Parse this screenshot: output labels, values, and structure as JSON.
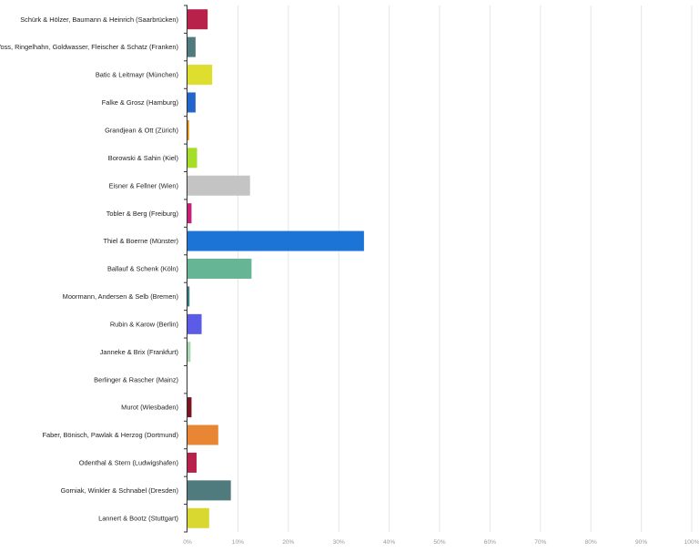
{
  "chart_data": {
    "type": "bar",
    "orientation": "horizontal",
    "title": "",
    "xlabel": "",
    "ylabel": "",
    "xlim": [
      0,
      100
    ],
    "x_ticks": [
      "0%",
      "10%",
      "20%",
      "30%",
      "40%",
      "50%",
      "60%",
      "70%",
      "80%",
      "90%",
      "100%"
    ],
    "grid": true,
    "categories": [
      "Schürk & Hölzer, Baumann & Heinrich (Saarbrücken)",
      "Voss, Ringelhahn, Goldwasser, Fleischer & Schatz (Franken)",
      "Batic & Leitmayr (München)",
      "Falke & Grosz (Hamburg)",
      "Grandjean & Ott (Zürich)",
      "Borowski & Sahin (Kiel)",
      "Eisner & Fellner (Wien)",
      "Tobler & Berg (Freiburg)",
      "Thiel & Boerne (Münster)",
      "Ballauf & Schenk (Köln)",
      "Moormann, Andersen & Selb (Bremen)",
      "Rubin & Karow (Berlin)",
      "Janneke & Brix (Frankfurt)",
      "Berlinger & Rascher (Mainz)",
      "Murot (Wiesbaden)",
      "Faber, Bönisch, Pawlak & Herzog (Dortmund)",
      "Odenthal & Stern (Ludwigshafen)",
      "Gorniak, Winkler & Schnabel (Dresden)",
      "Lannert & Bootz (Stuttgart)"
    ],
    "values": [
      4.0,
      1.6,
      4.9,
      1.6,
      0.3,
      1.9,
      12.4,
      0.8,
      35.0,
      12.7,
      0.4,
      2.8,
      0.6,
      0.0,
      0.8,
      6.1,
      1.8,
      8.6,
      4.3
    ],
    "colors": [
      "#b8214a",
      "#4f7a7e",
      "#dede2e",
      "#2266cc",
      "#e08a00",
      "#a6dd2a",
      "#c4c4c4",
      "#c81e7a",
      "#1c74d6",
      "#66b594",
      "#3a7f83",
      "#5b5be8",
      "#a8d8b0",
      "#ffffff",
      "#7a1420",
      "#e98633",
      "#b8214a",
      "#4f7a7e",
      "#d8d830"
    ]
  }
}
